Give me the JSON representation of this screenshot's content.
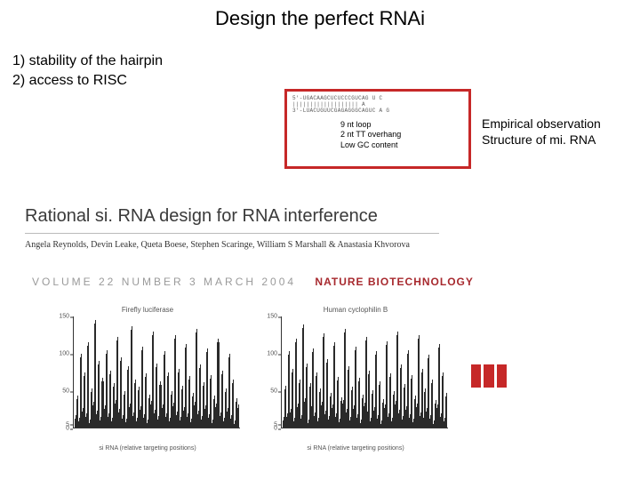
{
  "title": "Design the perfect RNAi",
  "points": {
    "line1": "1) stability of the hairpin",
    "line2": "2) access to RISC"
  },
  "hairpin": {
    "seq_top": "5'-UGACAAGCUCUCCCGUCAG U C",
    "seq_mid": "     |||||||||||||||||||    A",
    "seq_bot": "3'-LUACUGUUCGAGAGGGCAGUC A G",
    "notes": {
      "l1": "9 nt loop",
      "l2": "2 nt TT overhang",
      "l3": "Low GC content"
    },
    "border_color": "#c62828"
  },
  "empirical": {
    "l1": "Empirical observation",
    "l2": "Structure of mi. RNA"
  },
  "paper": {
    "title": "Rational si. RNA design for RNA interference",
    "authors": "Angela Reynolds, Devin Leake, Queta Boese, Stephen Scaringe, William S Marshall & Anastasia Khvorova",
    "vol_prefix": "VOLUME 22   NUMBER 3   MARCH 2004",
    "brand": "NATURE BIOTECHNOLOGY"
  },
  "charts": {
    "ylabel_max": 150,
    "yticks": [
      0,
      5,
      50,
      100,
      150
    ],
    "xlabel": "si RNA (relative targeting positions)",
    "left": {
      "title": "Firefly luciferase",
      "values": [
        12,
        38,
        8,
        95,
        22,
        70,
        15,
        110,
        6,
        48,
        30,
        140,
        18,
        85,
        10,
        62,
        25,
        100,
        14,
        72,
        8,
        55,
        33,
        118,
        20,
        90,
        12,
        45,
        7,
        78,
        28,
        132,
        16,
        60,
        9,
        50,
        24,
        105,
        13,
        68,
        6,
        40,
        31,
        125,
        19,
        82,
        11,
        58,
        26,
        98,
        15,
        70,
        8,
        44,
        29,
        120,
        17,
        75,
        10,
        52,
        23,
        108,
        14,
        65,
        7,
        42,
        30,
        128,
        18,
        80,
        11,
        56,
        25,
        102,
        13,
        66,
        6,
        38,
        28,
        115,
        16,
        72,
        9,
        48,
        22,
        95,
        12,
        60,
        5,
        35,
        27
      ]
    },
    "right": {
      "title": "Human cyclophilin B",
      "values": [
        10,
        52,
        14,
        98,
        20,
        75,
        8,
        115,
        28,
        60,
        12,
        135,
        35,
        82,
        6,
        55,
        24,
        102,
        16,
        70,
        9,
        48,
        30,
        122,
        18,
        88,
        11,
        42,
        26,
        110,
        14,
        64,
        7,
        36,
        32,
        128,
        20,
        78,
        10,
        50,
        25,
        105,
        13,
        62,
        6,
        40,
        29,
        118,
        17,
        72,
        9,
        46,
        23,
        98,
        12,
        58,
        5,
        34,
        27,
        112,
        15,
        68,
        8,
        44,
        31,
        125,
        19,
        80,
        11,
        54,
        24,
        100,
        13,
        66,
        7,
        38,
        28,
        120,
        16,
        74,
        9,
        48,
        22,
        94,
        12,
        60,
        5,
        32,
        26,
        108,
        14,
        70,
        8,
        42
      ]
    }
  },
  "colors": {
    "accent_red": "#c62828",
    "brand_red": "#a7292e",
    "text": "#000000",
    "bar": "#2a2a2a"
  }
}
